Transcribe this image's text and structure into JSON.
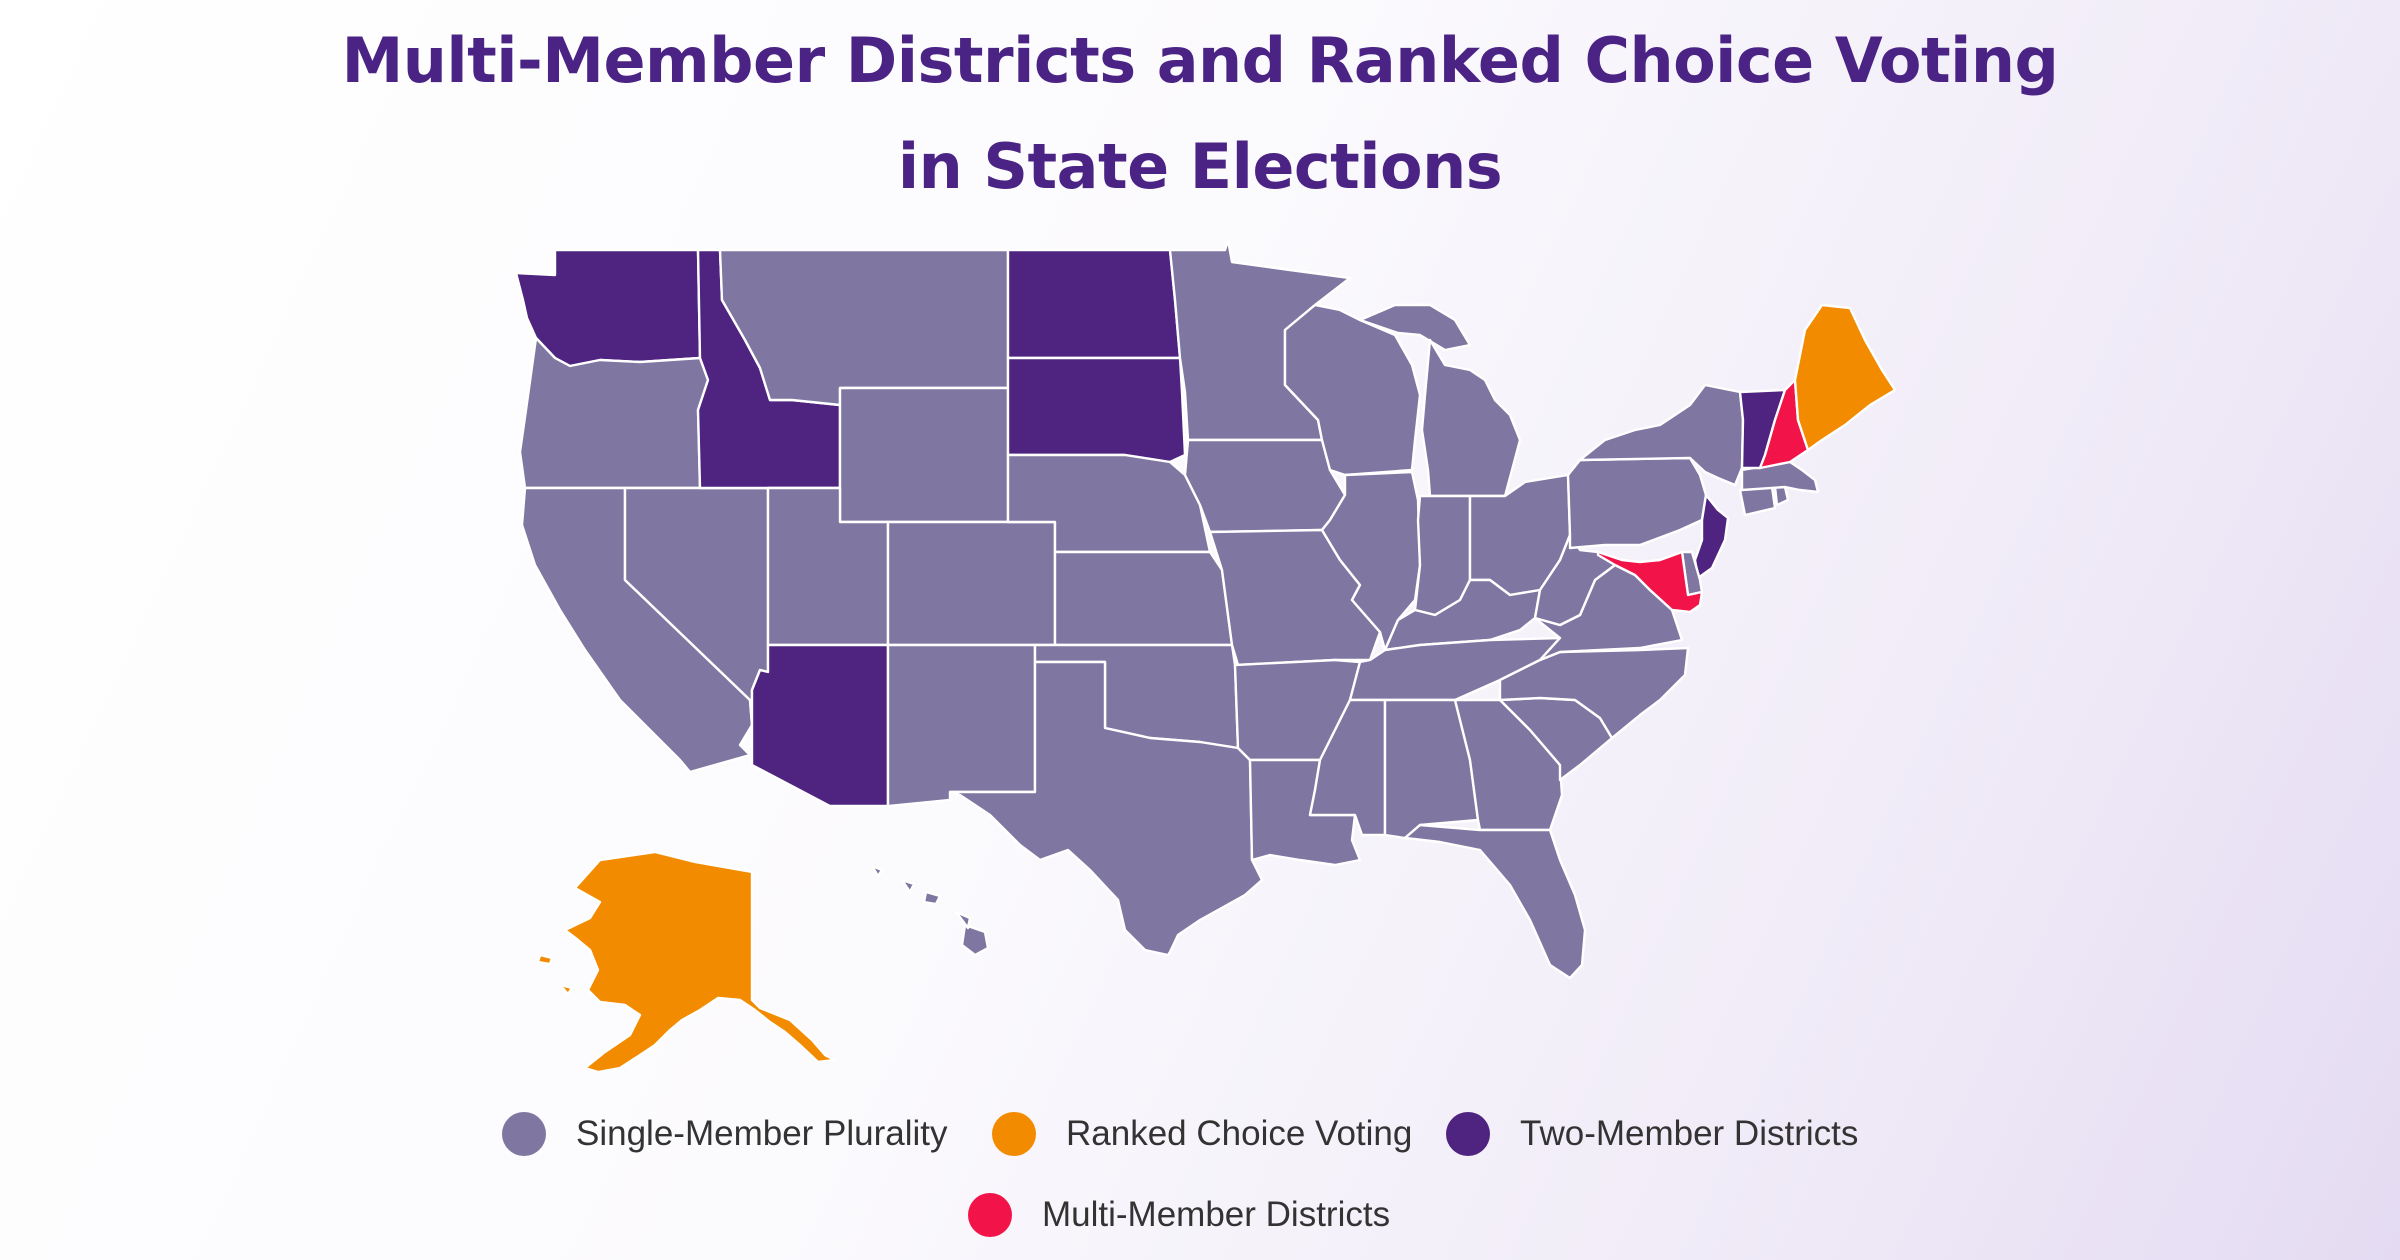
{
  "title": {
    "line1": "Multi-Member Districts and Ranked Choice Voting",
    "line2": "in State Elections"
  },
  "colors": {
    "single": "#7f77a1",
    "rcv": "#f38b00",
    "two": "#4f2480",
    "multi": "#f21448",
    "title": "#4a2384"
  },
  "legend": [
    {
      "key": "single",
      "label": "Single-Member Plurality"
    },
    {
      "key": "rcv",
      "label": "Ranked Choice Voting"
    },
    {
      "key": "two",
      "label": "Two-Member Districts"
    },
    {
      "key": "multi",
      "label": "Multi-Member Districts"
    }
  ],
  "states": {
    "WA": "two",
    "OR": "single",
    "CA": "single",
    "NV": "single",
    "ID": "two",
    "MT": "single",
    "WY": "single",
    "UT": "single",
    "AZ": "two",
    "CO": "single",
    "NM": "single",
    "ND": "two",
    "SD": "two",
    "NE": "single",
    "KS": "single",
    "OK": "single",
    "TX": "single",
    "MN": "single",
    "IA": "single",
    "MO": "single",
    "AR": "single",
    "LA": "single",
    "WI": "single",
    "IL": "single",
    "MI": "single",
    "IN": "single",
    "OH": "single",
    "KY": "single",
    "TN": "single",
    "MS": "single",
    "AL": "single",
    "GA": "single",
    "FL": "single",
    "SC": "single",
    "NC": "single",
    "VA": "single",
    "WV": "single",
    "PA": "single",
    "NY": "single",
    "VT": "two",
    "NH": "multi",
    "ME": "rcv",
    "MA": "single",
    "CT": "single",
    "RI": "single",
    "NJ": "two",
    "DE": "single",
    "MD": "multi",
    "AK": "rcv",
    "HI": "single"
  }
}
